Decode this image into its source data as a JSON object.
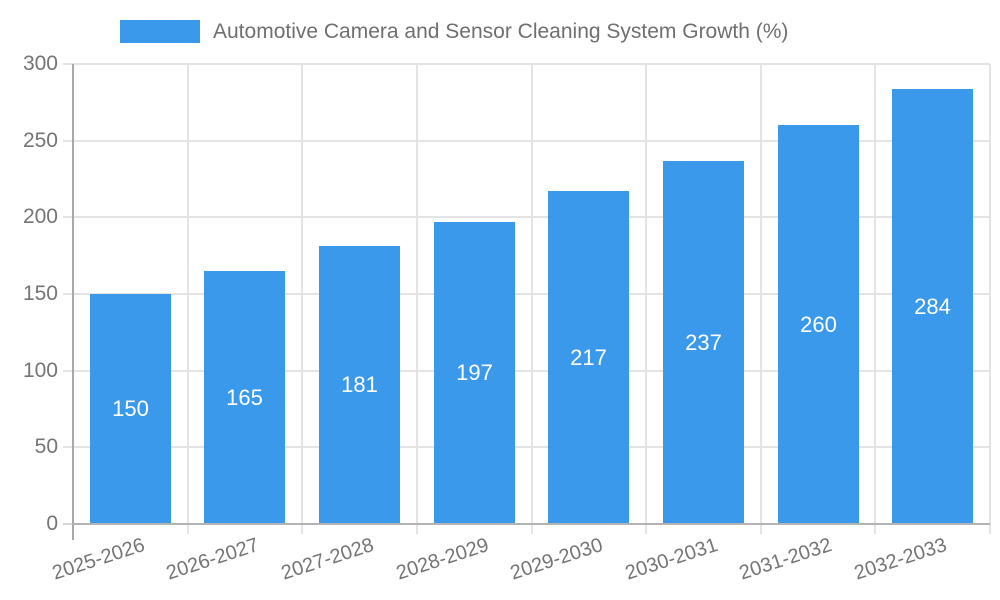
{
  "legend": {
    "label": "Automotive Camera and Sensor Cleaning System Growth (%)"
  },
  "chart_data": {
    "type": "bar",
    "title": "Automotive Camera and Sensor Cleaning System Growth (%)",
    "categories": [
      "2025-2026",
      "2026-2027",
      "2027-2028",
      "2028-2029",
      "2029-2030",
      "2030-2031",
      "2031-2032",
      "2032-2033"
    ],
    "values": [
      150,
      165,
      181,
      197,
      217,
      237,
      260,
      284
    ],
    "xlabel": "",
    "ylabel": "",
    "ylim": [
      0,
      300
    ],
    "y_ticks": [
      0,
      50,
      100,
      150,
      200,
      250,
      300
    ],
    "grid": true,
    "legend_position": "top",
    "x_label_rotation_deg": -18,
    "colors": {
      "bar": "#3b99ec",
      "value_label": "#ffffff",
      "tick_label": "#757575",
      "gridline": "#e4e4e4",
      "axis_line": "#adadad",
      "background": "#ffffff"
    }
  }
}
